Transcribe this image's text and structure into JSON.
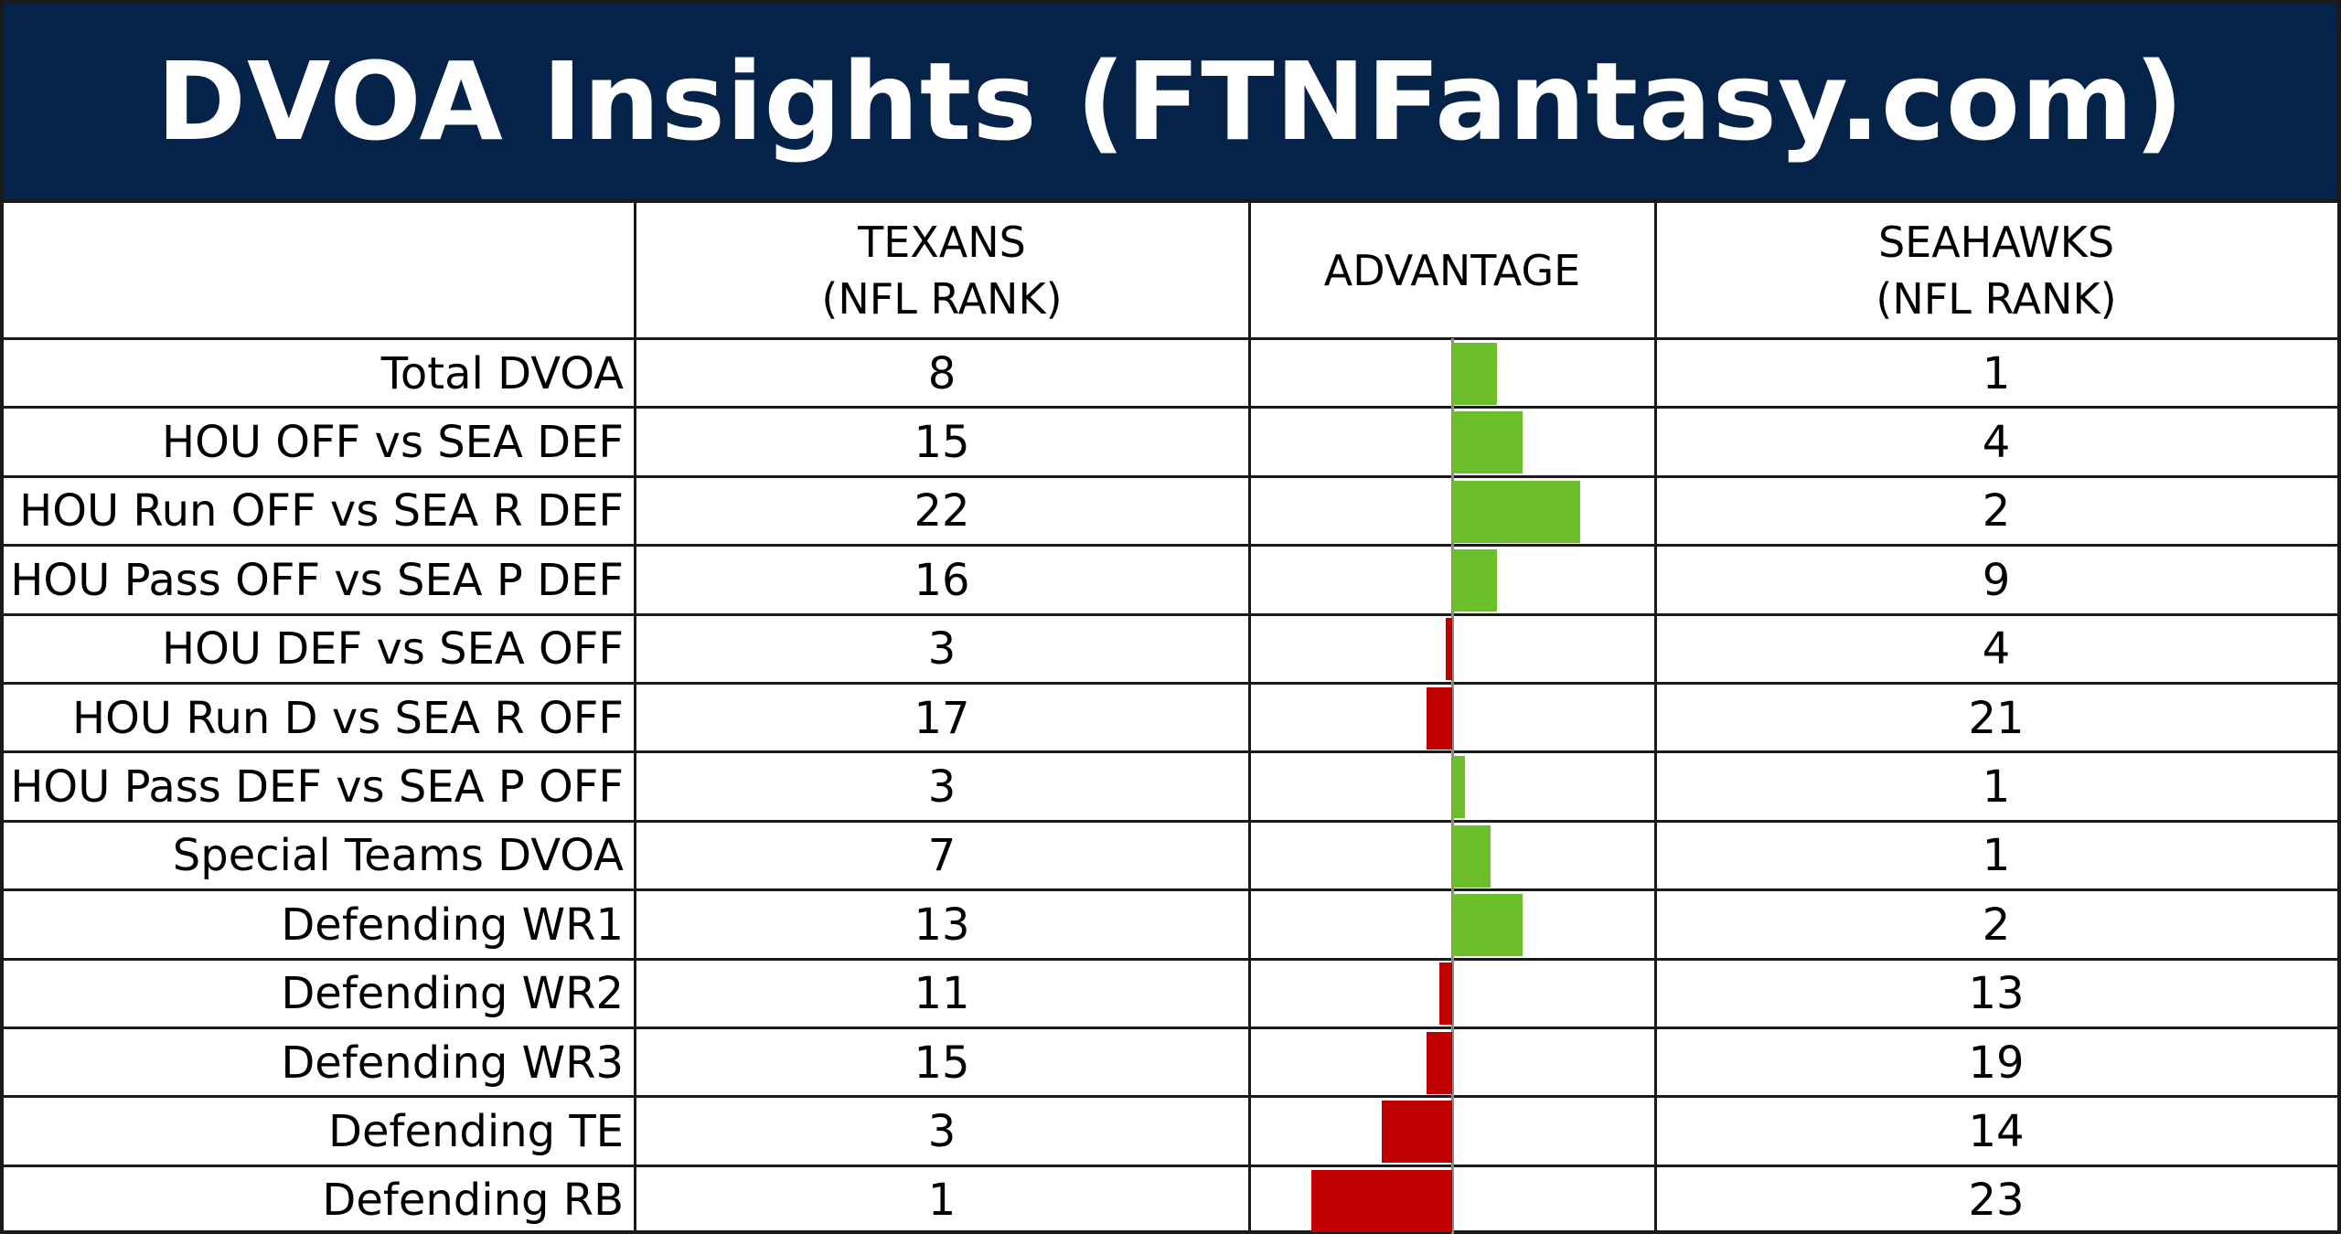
{
  "title": "DVOA Insights (FTNFantasy.com)",
  "headers": {
    "label": "",
    "texans_line1": "TEXANS",
    "texans_line2": "(NFL RANK)",
    "advantage": "ADVANTAGE",
    "seahawks_line1": "SEAHAWKS",
    "seahawks_line2": "(NFL RANK)"
  },
  "colors": {
    "title_bg": "#052249",
    "positive_bar": "#6cbf2a",
    "negative_bar": "#c00000"
  },
  "chart_data": {
    "type": "table",
    "columns": [
      "",
      "TEXANS (NFL RANK)",
      "ADVANTAGE",
      "SEAHAWKS (NFL RANK)"
    ],
    "rows": [
      {
        "label": "Total DVOA",
        "texans": 8,
        "seahawks": 1
      },
      {
        "label": "HOU OFF vs SEA DEF",
        "texans": 15,
        "seahawks": 4
      },
      {
        "label": "HOU Run OFF vs SEA R DEF",
        "texans": 22,
        "seahawks": 2
      },
      {
        "label": "HOU Pass OFF vs SEA P DEF",
        "texans": 16,
        "seahawks": 9
      },
      {
        "label": "HOU DEF vs SEA OFF",
        "texans": 3,
        "seahawks": 4
      },
      {
        "label": "HOU Run D vs SEA R OFF",
        "texans": 17,
        "seahawks": 21
      },
      {
        "label": "HOU Pass DEF vs SEA P OFF",
        "texans": 3,
        "seahawks": 1
      },
      {
        "label": "Special Teams DVOA",
        "texans": 7,
        "seahawks": 1
      },
      {
        "label": "Defending WR1",
        "texans": 13,
        "seahawks": 2
      },
      {
        "label": "Defending WR2",
        "texans": 11,
        "seahawks": 13
      },
      {
        "label": "Defending WR3",
        "texans": 15,
        "seahawks": 19
      },
      {
        "label": "Defending TE",
        "texans": 3,
        "seahawks": 14
      },
      {
        "label": "Defending RB",
        "texans": 1,
        "seahawks": 23
      }
    ],
    "advantage": {
      "type": "bar",
      "orientation": "horizontal",
      "values": [
        7,
        11,
        20,
        7,
        -1,
        -4,
        2,
        6,
        11,
        -2,
        -4,
        -11,
        -22
      ],
      "positive_color": "#6cbf2a",
      "negative_color": "#c00000"
    }
  }
}
